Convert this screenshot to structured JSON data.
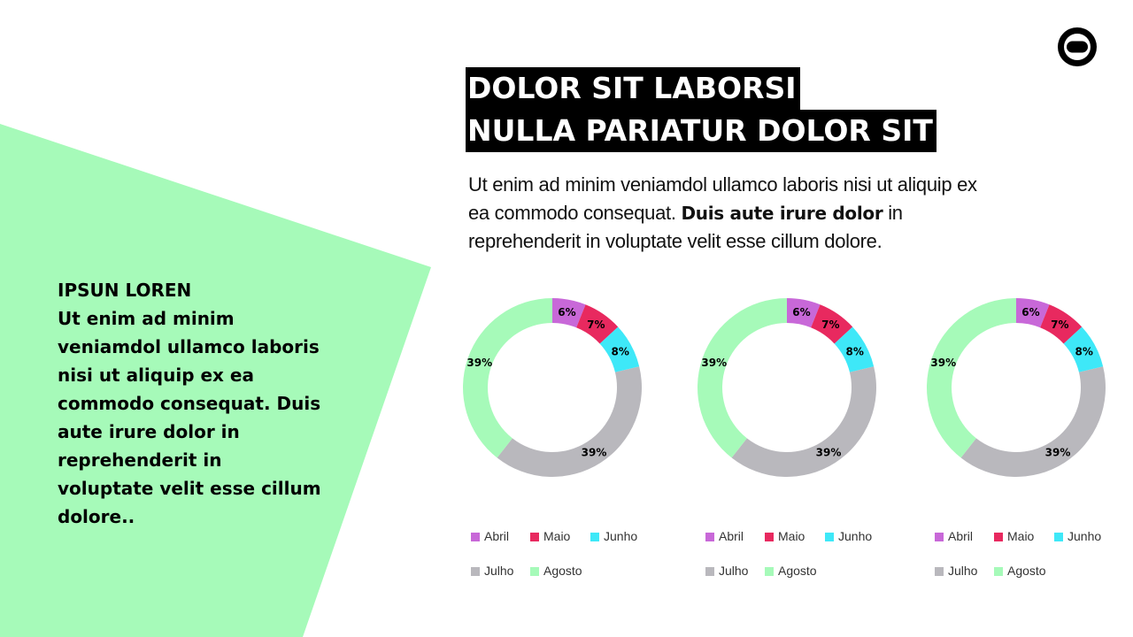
{
  "title": {
    "line1": "DOLOR SIT LABORSI",
    "line2": "NULLA PARIATUR DOLOR SIT"
  },
  "subtitle": {
    "text_part1": "Ut enim ad minim veniamdol ullamco laboris nisi ut aliquip ex ea commodo consequat.",
    "bold_part": "Duis aute irure dolor",
    "text_part2": "in reprehenderit in voluptate velit esse cillum dolore."
  },
  "side": {
    "heading": "IPSUN LOREN",
    "body": "Ut enim ad minim veniamdol ullamco laboris nisi ut aliquip ex ea commodo consequat. Duis aute irure dolor in reprehenderit in voluptate velit esse cillum dolore.."
  },
  "colors": {
    "accent_green": "#A6FAB9",
    "abril": "#C868D8",
    "maio": "#E8295F",
    "junho": "#3EE8F8",
    "julho": "#B9B8BD",
    "agosto": "#A6FAB9"
  },
  "logo_icon": "tv-globe-icon",
  "chart_data": [
    {
      "type": "donut",
      "categories": [
        "Abril",
        "Maio",
        "Junho",
        "Julho",
        "Agosto"
      ],
      "values": [
        6,
        7,
        8,
        39,
        39
      ],
      "labels": [
        "6%",
        "7%",
        "8%",
        "39%",
        "39%"
      ],
      "legend_position": "bottom"
    },
    {
      "type": "donut",
      "categories": [
        "Abril",
        "Maio",
        "Junho",
        "Julho",
        "Agosto"
      ],
      "values": [
        6,
        7,
        8,
        39,
        39
      ],
      "labels": [
        "6%",
        "7%",
        "8%",
        "39%",
        "39%"
      ],
      "legend_position": "bottom"
    },
    {
      "type": "donut",
      "categories": [
        "Abril",
        "Maio",
        "Junho",
        "Julho",
        "Agosto"
      ],
      "values": [
        6,
        7,
        8,
        39,
        39
      ],
      "labels": [
        "6%",
        "7%",
        "8%",
        "39%",
        "39%"
      ],
      "legend_position": "bottom"
    }
  ]
}
